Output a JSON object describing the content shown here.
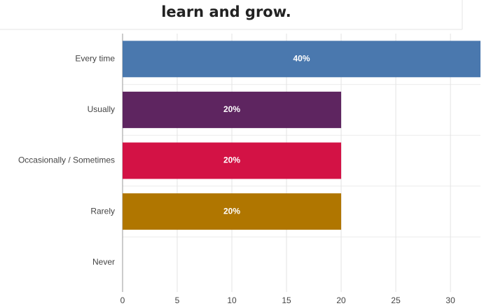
{
  "chart_data": {
    "type": "hbar",
    "title": "learn and grow.",
    "categories": [
      "Every time",
      "Usually",
      "Occasionally / Sometimes",
      "Rarely",
      "Never"
    ],
    "values": [
      40,
      20,
      20,
      20,
      0
    ],
    "value_labels": [
      "40%",
      "20%",
      "20%",
      "20%",
      null
    ],
    "colors": [
      "#4a78ae",
      "#5e2560",
      "#d31245",
      "#b07600",
      "#888888"
    ],
    "xlim": [
      0,
      32.75
    ],
    "xticks": [
      0,
      5,
      10,
      15,
      20,
      25,
      30
    ],
    "grid": true
  }
}
